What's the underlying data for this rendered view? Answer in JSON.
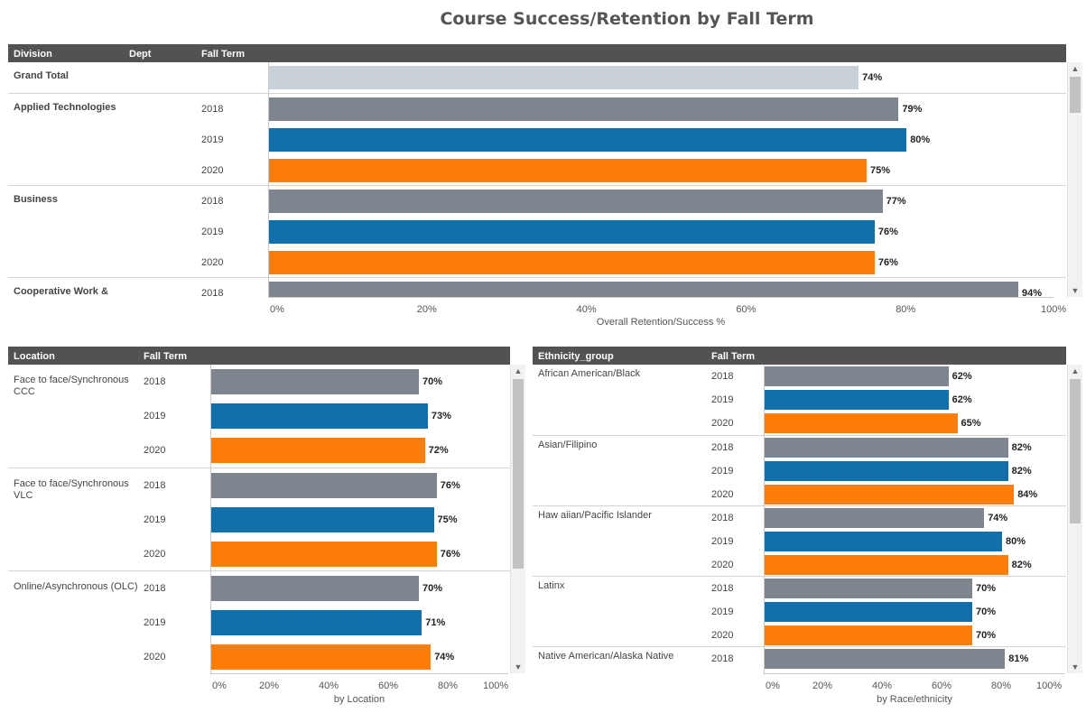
{
  "title": "Course Success/Retention by Fall Term",
  "colors": {
    "2018": "#7f858f",
    "2019": "#1170aa",
    "2020": "#fc7d0b",
    "total": "#c8d0d8"
  },
  "top": {
    "headers": {
      "division": "Division",
      "dept": "Dept",
      "term": "Fall Term"
    },
    "axis_title": "Overall Retention/Success %",
    "ticks": [
      "0%",
      "20%",
      "40%",
      "60%",
      "80%",
      "100%"
    ]
  },
  "location": {
    "headers": {
      "location": "Location",
      "term": "Fall Term"
    },
    "axis_title": "by Location",
    "ticks": [
      "0%",
      "20%",
      "40%",
      "60%",
      "80%",
      "100%"
    ]
  },
  "ethnicity": {
    "headers": {
      "group": "Ethnicity_group",
      "term": "Fall Term"
    },
    "axis_title": "by Race/ethnicity",
    "ticks": [
      "0%",
      "20%",
      "40%",
      "60%",
      "80%",
      "100%"
    ]
  },
  "chart_data": [
    {
      "type": "bar",
      "orientation": "horizontal",
      "title": "Course Success/Retention by Fall Term",
      "xlabel": "Overall Retention/Success %",
      "xlim": [
        0,
        100
      ],
      "groups": [
        {
          "name": "Grand Total",
          "rows": [
            {
              "term": "",
              "value": 74,
              "label": "74%"
            }
          ]
        },
        {
          "name": "Applied Technologies",
          "rows": [
            {
              "term": "2018",
              "value": 79,
              "label": "79%"
            },
            {
              "term": "2019",
              "value": 80,
              "label": "80%"
            },
            {
              "term": "2020",
              "value": 75,
              "label": "75%"
            }
          ]
        },
        {
          "name": "Business",
          "rows": [
            {
              "term": "2018",
              "value": 77,
              "label": "77%"
            },
            {
              "term": "2019",
              "value": 76,
              "label": "76%"
            },
            {
              "term": "2020",
              "value": 76,
              "label": "76%"
            }
          ]
        },
        {
          "name": "Cooperative Work &",
          "rows": [
            {
              "term": "2018",
              "value": 94,
              "label": "94%"
            }
          ]
        }
      ]
    },
    {
      "type": "bar",
      "orientation": "horizontal",
      "xlabel": "by Location",
      "xlim": [
        0,
        100
      ],
      "groups": [
        {
          "name": "Face to face/Synchronous CCC",
          "rows": [
            {
              "term": "2018",
              "value": 70,
              "label": "70%"
            },
            {
              "term": "2019",
              "value": 73,
              "label": "73%"
            },
            {
              "term": "2020",
              "value": 72,
              "label": "72%"
            }
          ]
        },
        {
          "name": "Face to face/Synchronous VLC",
          "rows": [
            {
              "term": "2018",
              "value": 76,
              "label": "76%"
            },
            {
              "term": "2019",
              "value": 75,
              "label": "75%"
            },
            {
              "term": "2020",
              "value": 76,
              "label": "76%"
            }
          ]
        },
        {
          "name": "Online/Asynchronous (OLC)",
          "rows": [
            {
              "term": "2018",
              "value": 70,
              "label": "70%"
            },
            {
              "term": "2019",
              "value": 71,
              "label": "71%"
            },
            {
              "term": "2020",
              "value": 74,
              "label": "74%"
            }
          ]
        }
      ]
    },
    {
      "type": "bar",
      "orientation": "horizontal",
      "xlabel": "by Race/ethnicity",
      "xlim": [
        0,
        100
      ],
      "groups": [
        {
          "name": "African American/Black",
          "rows": [
            {
              "term": "2018",
              "value": 62,
              "label": "62%"
            },
            {
              "term": "2019",
              "value": 62,
              "label": "62%"
            },
            {
              "term": "2020",
              "value": 65,
              "label": "65%"
            }
          ]
        },
        {
          "name": "Asian/Filipino",
          "rows": [
            {
              "term": "2018",
              "value": 82,
              "label": "82%"
            },
            {
              "term": "2019",
              "value": 82,
              "label": "82%"
            },
            {
              "term": "2020",
              "value": 84,
              "label": "84%"
            }
          ]
        },
        {
          "name": "Haw aiian/Pacific Islander",
          "rows": [
            {
              "term": "2018",
              "value": 74,
              "label": "74%"
            },
            {
              "term": "2019",
              "value": 80,
              "label": "80%"
            },
            {
              "term": "2020",
              "value": 82,
              "label": "82%"
            }
          ]
        },
        {
          "name": "Latinx",
          "rows": [
            {
              "term": "2018",
              "value": 70,
              "label": "70%"
            },
            {
              "term": "2019",
              "value": 70,
              "label": "70%"
            },
            {
              "term": "2020",
              "value": 70,
              "label": "70%"
            }
          ]
        },
        {
          "name": "Native American/Alaska Native",
          "rows": [
            {
              "term": "2018",
              "value": 81,
              "label": "81%"
            }
          ]
        }
      ]
    }
  ]
}
